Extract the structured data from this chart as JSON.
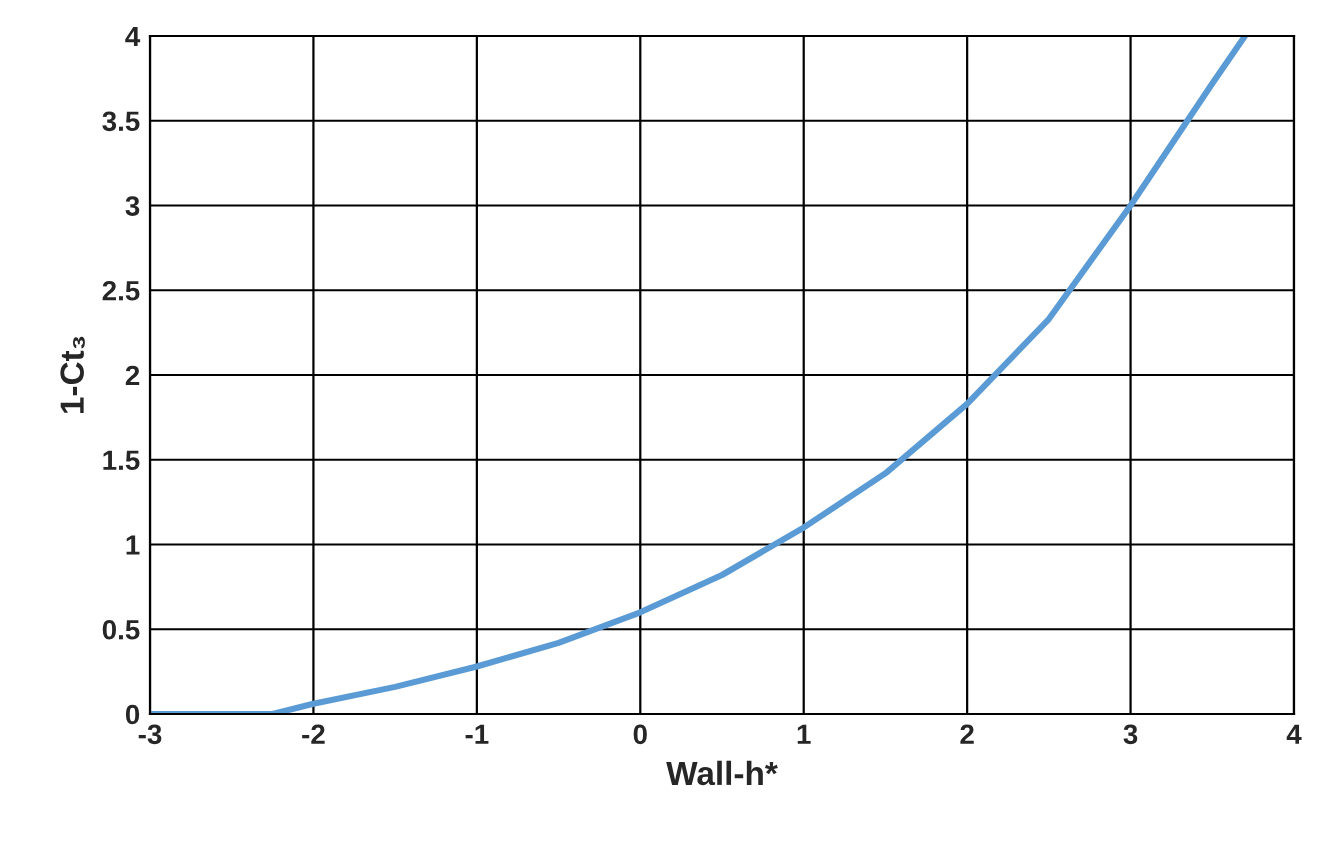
{
  "chart_data": {
    "type": "line",
    "xlabel": "Wall-h*",
    "ylabel": "1-Ct₃",
    "x": [
      -3,
      -2.5,
      -2.25,
      -2,
      -1.5,
      -1,
      -0.5,
      0,
      0.5,
      1,
      1.5,
      2,
      2.5,
      3,
      3.5,
      3.7
    ],
    "series": [
      {
        "color": "#5b9bd5",
        "values": [
          0,
          0,
          0,
          0.06,
          0.16,
          0.28,
          0.42,
          0.6,
          0.82,
          1.1,
          1.42,
          1.83,
          2.33,
          3.0,
          3.72,
          4.0
        ]
      }
    ],
    "xlim": [
      -3,
      4
    ],
    "ylim": [
      0,
      4
    ],
    "xticks": [
      -3,
      -2,
      -1,
      0,
      1,
      2,
      3,
      4
    ],
    "yticks": [
      0,
      0.5,
      1,
      1.5,
      2,
      2.5,
      3,
      3.5,
      4
    ],
    "grid": true,
    "legend": false,
    "marker": "none",
    "line_style": "solid"
  }
}
